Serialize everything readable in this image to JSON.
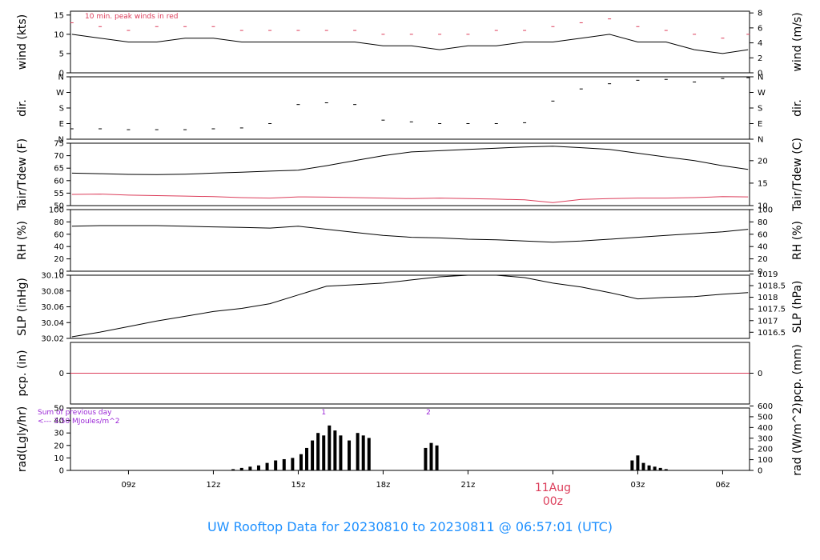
{
  "title": "UW Rooftop Data for 20230810  to  20230811 @ 06:57:01  (UTC)",
  "colors": {
    "peak": "#dc3d5a",
    "dew": "#dc3d5a",
    "rain": "#dc3d5a",
    "date": "#dc3d5a",
    "note": "#9b27d6",
    "title": "#1e90ff",
    "series": "#000000"
  },
  "time_axis": {
    "range_hours": [
      6.95,
      30.95
    ],
    "ticks": [
      {
        "hour": 9,
        "label": "09z"
      },
      {
        "hour": 12,
        "label": "12z"
      },
      {
        "hour": 15,
        "label": "15z"
      },
      {
        "hour": 18,
        "label": "18z"
      },
      {
        "hour": 21,
        "label": "21z"
      },
      {
        "hour": 27,
        "label": "03z"
      },
      {
        "hour": 30,
        "label": "06z"
      }
    ],
    "day_marker": {
      "hour": 24,
      "date": "11Aug",
      "time": "00z"
    }
  },
  "chart_data": [
    {
      "type": "line",
      "panel": "wind",
      "ylabel_left": "wind (kts)",
      "ylabel_right": "wind (m/s)",
      "ylim": [
        0,
        16
      ],
      "left_ticks": [
        {
          "v": 0,
          "l": "0"
        },
        {
          "v": 5,
          "l": "5"
        },
        {
          "v": 10,
          "l": "10"
        },
        {
          "v": 15,
          "l": "15"
        }
      ],
      "right_ticks": [
        {
          "v": 0,
          "l": "0"
        },
        {
          "v": 3.888,
          "l": "2"
        },
        {
          "v": 7.776,
          "l": "4"
        },
        {
          "v": 11.664,
          "l": "6"
        },
        {
          "v": 15.552,
          "l": "8"
        }
      ],
      "annotation": "10 min. peak winds in red",
      "x": [
        7,
        8,
        9,
        10,
        11,
        12,
        13,
        14,
        15,
        16,
        17,
        18,
        19,
        20,
        21,
        22,
        23,
        24,
        25,
        26,
        27,
        28,
        29,
        30,
        30.9
      ],
      "series": [
        {
          "values": [
            10,
            9,
            8,
            8,
            9,
            9,
            8,
            8,
            8,
            8,
            8,
            7,
            7,
            6,
            7,
            7,
            8,
            8,
            9,
            10,
            8,
            8,
            6,
            5,
            6
          ]
        },
        {
          "values": [
            13,
            12,
            11,
            12,
            12,
            12,
            11,
            11,
            11,
            11,
            11,
            10,
            10,
            10,
            10,
            11,
            11,
            12,
            13,
            14,
            12,
            11,
            10,
            9,
            10
          ]
        }
      ]
    },
    {
      "type": "scatter",
      "panel": "dir",
      "ylabel_left": "dir.",
      "ylabel_right": "dir.",
      "ylim": [
        0,
        360
      ],
      "left_ticks": [
        {
          "v": 0,
          "l": "N"
        },
        {
          "v": 90,
          "l": "E"
        },
        {
          "v": 180,
          "l": "S"
        },
        {
          "v": 270,
          "l": "W"
        },
        {
          "v": 360,
          "l": "N"
        }
      ],
      "right_ticks": [
        {
          "v": 0,
          "l": "N"
        },
        {
          "v": 90,
          "l": "E"
        },
        {
          "v": 180,
          "l": "S"
        },
        {
          "v": 270,
          "l": "W"
        },
        {
          "v": 360,
          "l": "N"
        }
      ],
      "x": [
        7,
        8,
        9,
        10,
        11,
        12,
        13,
        14,
        15,
        16,
        17,
        18,
        19,
        20,
        21,
        22,
        23,
        24,
        25,
        26,
        27,
        28,
        29,
        30,
        30.9
      ],
      "series": [
        {
          "values": [
            60,
            60,
            55,
            55,
            55,
            60,
            65,
            90,
            200,
            210,
            200,
            110,
            100,
            90,
            90,
            90,
            95,
            220,
            290,
            320,
            340,
            345,
            330,
            350,
            355
          ]
        }
      ]
    },
    {
      "type": "line",
      "panel": "temp",
      "ylabel_left": "Tair/Tdew (F)",
      "ylabel_right": "Tair/Tdew (C)",
      "ylim": [
        50,
        75
      ],
      "left_ticks": [
        {
          "v": 50,
          "l": "50"
        },
        {
          "v": 55,
          "l": "55"
        },
        {
          "v": 60,
          "l": "60"
        },
        {
          "v": 65,
          "l": "65"
        },
        {
          "v": 70,
          "l": "70"
        },
        {
          "v": 75,
          "l": "75"
        }
      ],
      "right_ticks": [
        {
          "v": 50,
          "l": "10"
        },
        {
          "v": 59,
          "l": "15"
        },
        {
          "v": 68,
          "l": "20"
        }
      ],
      "x": [
        7,
        8,
        9,
        10,
        11,
        12,
        13,
        14,
        15,
        16,
        17,
        18,
        19,
        20,
        21,
        22,
        23,
        24,
        25,
        26,
        27,
        28,
        29,
        30,
        30.9
      ],
      "series": [
        {
          "values": [
            63,
            62.8,
            62.5,
            62.4,
            62.6,
            63,
            63.4,
            63.8,
            64.2,
            66,
            68,
            70,
            71.5,
            72,
            72.5,
            73,
            73.5,
            73.8,
            73.2,
            72.5,
            71,
            69.5,
            68,
            66,
            64.5
          ]
        },
        {
          "values": [
            54.5,
            54.6,
            54.2,
            54,
            53.8,
            53.6,
            53.2,
            53,
            53.5,
            53.4,
            53.2,
            53,
            52.8,
            53,
            52.8,
            52.6,
            52.3,
            51.2,
            52.5,
            52.8,
            53,
            53,
            53.2,
            53.6,
            53.5
          ]
        }
      ]
    },
    {
      "type": "line",
      "panel": "rh",
      "ylabel_left": "RH (%)",
      "ylabel_right": "RH (%)",
      "ylim": [
        0,
        100
      ],
      "left_ticks": [
        {
          "v": 0,
          "l": "0"
        },
        {
          "v": 20,
          "l": "20"
        },
        {
          "v": 40,
          "l": "40"
        },
        {
          "v": 60,
          "l": "60"
        },
        {
          "v": 80,
          "l": "80"
        },
        {
          "v": 100,
          "l": "100"
        }
      ],
      "right_ticks": [
        {
          "v": 0,
          "l": "0"
        },
        {
          "v": 20,
          "l": "20"
        },
        {
          "v": 40,
          "l": "40"
        },
        {
          "v": 60,
          "l": "60"
        },
        {
          "v": 80,
          "l": "80"
        },
        {
          "v": 100,
          "l": "100"
        }
      ],
      "x": [
        7,
        8,
        9,
        10,
        11,
        12,
        13,
        14,
        15,
        16,
        17,
        18,
        19,
        20,
        21,
        22,
        23,
        24,
        25,
        26,
        27,
        28,
        29,
        30,
        30.9
      ],
      "series": [
        {
          "values": [
            73,
            74,
            74,
            74,
            73,
            72,
            71,
            70,
            73,
            68,
            63,
            58,
            55,
            54,
            52,
            51,
            49,
            47,
            49,
            52,
            55,
            58,
            61,
            64,
            68
          ]
        }
      ]
    },
    {
      "type": "line",
      "panel": "slp",
      "ylabel_left": "SLP (inHg)",
      "ylabel_right": "SLP (hPa)",
      "ylim": [
        30.02,
        30.1
      ],
      "left_ticks": [
        {
          "v": 30.02,
          "l": "30.02"
        },
        {
          "v": 30.04,
          "l": "30.04"
        },
        {
          "v": 30.06,
          "l": "30.06"
        },
        {
          "v": 30.08,
          "l": "30.08"
        },
        {
          "v": 30.1,
          "l": "30.10"
        }
      ],
      "right_ticks": [
        {
          "v": 30.0278,
          "l": "1016.5"
        },
        {
          "v": 30.0425,
          "l": "1017"
        },
        {
          "v": 30.0573,
          "l": "1017.5"
        },
        {
          "v": 30.0721,
          "l": "1018"
        },
        {
          "v": 30.0868,
          "l": "1018.5"
        },
        {
          "v": 30.1016,
          "l": "1019"
        }
      ],
      "x": [
        7,
        8,
        9,
        10,
        11,
        12,
        13,
        14,
        15,
        16,
        17,
        18,
        19,
        20,
        21,
        22,
        23,
        24,
        25,
        26,
        27,
        28,
        29,
        30,
        30.9
      ],
      "series": [
        {
          "values": [
            30.022,
            30.028,
            30.035,
            30.042,
            30.048,
            30.054,
            30.058,
            30.064,
            30.075,
            30.086,
            30.088,
            30.09,
            30.094,
            30.098,
            30.1,
            30.1,
            30.097,
            30.09,
            30.085,
            30.078,
            30.07,
            30.072,
            30.073,
            30.076,
            30.078
          ]
        }
      ]
    },
    {
      "type": "line",
      "panel": "pcp",
      "ylabel_left": "pcp. (in)",
      "ylabel_right": "pcp. (mm)",
      "ylim": [
        -1,
        1
      ],
      "left_ticks": [
        {
          "v": 0,
          "l": "0"
        }
      ],
      "right_ticks": [
        {
          "v": 0,
          "l": "0"
        }
      ],
      "x": [
        6.95,
        30.95
      ],
      "series": [
        {
          "values": [
            0,
            0
          ]
        }
      ]
    },
    {
      "type": "bar",
      "panel": "rad",
      "ylabel_left": "rad(Lgly/hr)",
      "ylabel_right": "rad (W/m^2)",
      "ylim": [
        0,
        50
      ],
      "left_ticks": [
        {
          "v": 0,
          "l": "0"
        },
        {
          "v": 10,
          "l": "10"
        },
        {
          "v": 20,
          "l": "20"
        },
        {
          "v": 30,
          "l": "30"
        },
        {
          "v": 40,
          "l": "40"
        },
        {
          "v": 50,
          "l": "50"
        }
      ],
      "right_ticks": [
        {
          "v": 0,
          "l": "0"
        },
        {
          "v": 8.6,
          "l": "100"
        },
        {
          "v": 17.2,
          "l": "200"
        },
        {
          "v": 25.8,
          "l": "300"
        },
        {
          "v": 34.4,
          "l": "400"
        },
        {
          "v": 43,
          "l": "500"
        },
        {
          "v": 51.6,
          "l": "600"
        }
      ],
      "annotation_lines": [
        "Sum of previous day",
        "<--- 3.50 MJoules/m^2"
      ],
      "markers": [
        {
          "hour": 15.9,
          "label": "1"
        },
        {
          "hour": 19.6,
          "label": "2"
        }
      ],
      "x": [
        12.7,
        13,
        13.3,
        13.6,
        13.9,
        14.2,
        14.5,
        14.8,
        15.1,
        15.3,
        15.5,
        15.7,
        15.9,
        16.1,
        16.3,
        16.5,
        16.8,
        17.1,
        17.3,
        17.5,
        19.5,
        19.7,
        19.9,
        26.8,
        27,
        27.2,
        27.4,
        27.6,
        27.8,
        28
      ],
      "values": [
        1,
        2,
        3,
        4,
        6,
        8,
        9,
        10,
        13,
        18,
        24,
        30,
        28,
        36,
        32,
        28,
        24,
        30,
        28,
        26,
        18,
        22,
        20,
        8,
        12,
        6,
        4,
        3,
        2,
        1
      ]
    }
  ]
}
